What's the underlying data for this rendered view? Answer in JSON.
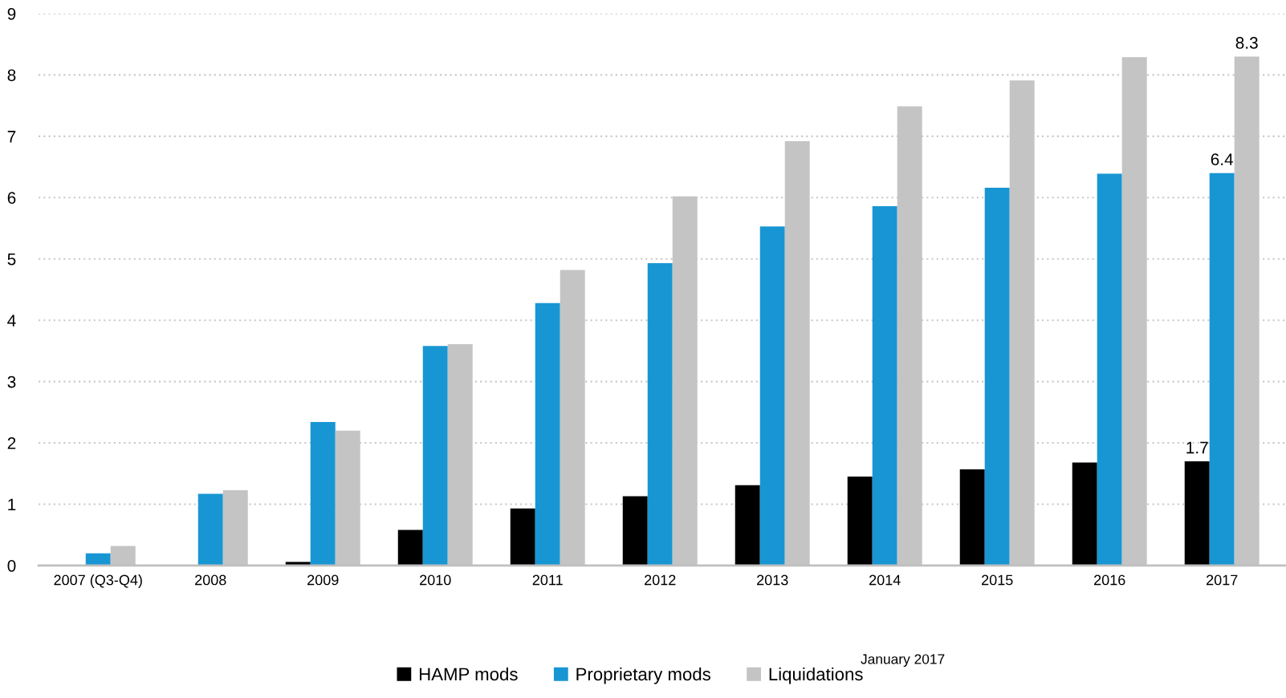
{
  "chart_data": {
    "type": "bar",
    "categories": [
      "2007 (Q3-Q4)",
      "2008",
      "2009",
      "2010",
      "2011",
      "2012",
      "2013",
      "2014",
      "2015",
      "2016",
      "2017"
    ],
    "series": [
      {
        "name": "HAMP mods",
        "color": "#000000",
        "values": [
          null,
          null,
          0.06,
          0.58,
          0.93,
          1.13,
          1.31,
          1.45,
          1.57,
          1.68,
          1.7
        ],
        "value_labels": [
          null,
          null,
          null,
          null,
          null,
          null,
          null,
          null,
          null,
          null,
          "1.7"
        ]
      },
      {
        "name": "Proprietary mods",
        "color": "#1896d3",
        "values": [
          0.2,
          1.17,
          2.34,
          3.58,
          4.28,
          4.93,
          5.53,
          5.86,
          6.16,
          6.39,
          6.4
        ],
        "value_labels": [
          null,
          null,
          null,
          null,
          null,
          null,
          null,
          null,
          null,
          null,
          "6.4"
        ]
      },
      {
        "name": "Liquidations",
        "color": "#c4c4c4",
        "values": [
          0.32,
          1.23,
          2.2,
          3.61,
          4.82,
          6.02,
          6.92,
          7.49,
          7.91,
          8.29,
          8.3
        ],
        "value_labels": [
          null,
          null,
          null,
          null,
          null,
          null,
          null,
          null,
          null,
          null,
          "8.3"
        ]
      }
    ],
    "ylim": [
      0,
      9
    ],
    "yticks": [
      0,
      1,
      2,
      3,
      4,
      5,
      6,
      7,
      8,
      9
    ],
    "grid": "y",
    "legend": "bottom",
    "annotations": [
      "January 2017"
    ]
  }
}
